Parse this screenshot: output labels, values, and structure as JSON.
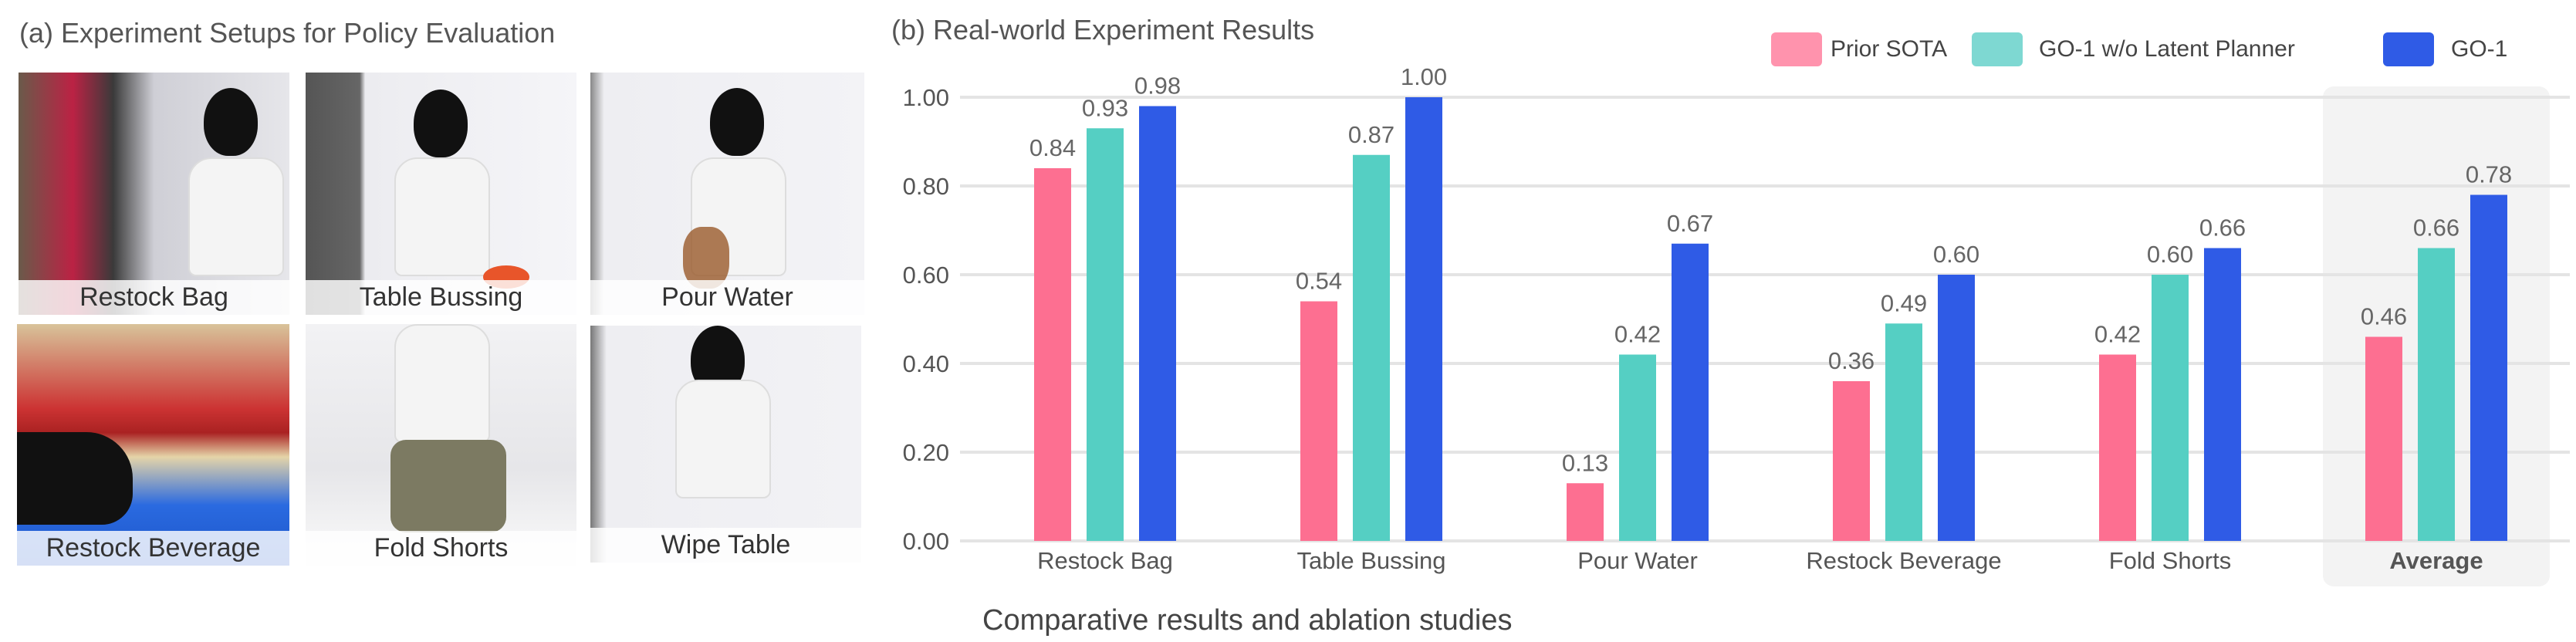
{
  "panel_a": {
    "title": "(a) Experiment Setups for Policy Evaluation",
    "tasks": [
      {
        "label": "Restock Bag"
      },
      {
        "label": "Table Bussing"
      },
      {
        "label": "Pour Water"
      },
      {
        "label": "Restock Beverage"
      },
      {
        "label": "Fold Shorts"
      },
      {
        "label": "Wipe Table"
      }
    ]
  },
  "panel_b": {
    "title": "(b) Real-world Experiment Results",
    "caption": "Comparative results and ablation studies"
  },
  "chart_data": {
    "type": "bar",
    "title": "(b) Real-world Experiment Results",
    "xlabel": "Comparative results and ablation studies",
    "ylabel": "",
    "ylim": [
      0,
      1.0
    ],
    "yticks": [
      "0.00",
      "0.20",
      "0.40",
      "0.60",
      "0.80",
      "1.00"
    ],
    "grid": true,
    "legend_position": "top-right",
    "categories": [
      "Restock Bag",
      "Table Bussing",
      "Pour Water",
      "Restock Beverage",
      "Fold Shorts",
      "Average"
    ],
    "highlighted_category": "Average",
    "series": [
      {
        "name": "Prior SOTA",
        "color": "#fd6f91",
        "values": [
          0.84,
          0.54,
          0.13,
          0.36,
          0.42,
          0.46
        ]
      },
      {
        "name": "GO-1 w/o Latent Planner",
        "color": "#55cfc3",
        "values": [
          0.93,
          0.87,
          0.42,
          0.49,
          0.6,
          0.66
        ]
      },
      {
        "name": "GO-1",
        "color": "#2f5be6",
        "values": [
          0.98,
          1.0,
          0.67,
          0.6,
          0.66,
          0.78
        ]
      }
    ]
  }
}
